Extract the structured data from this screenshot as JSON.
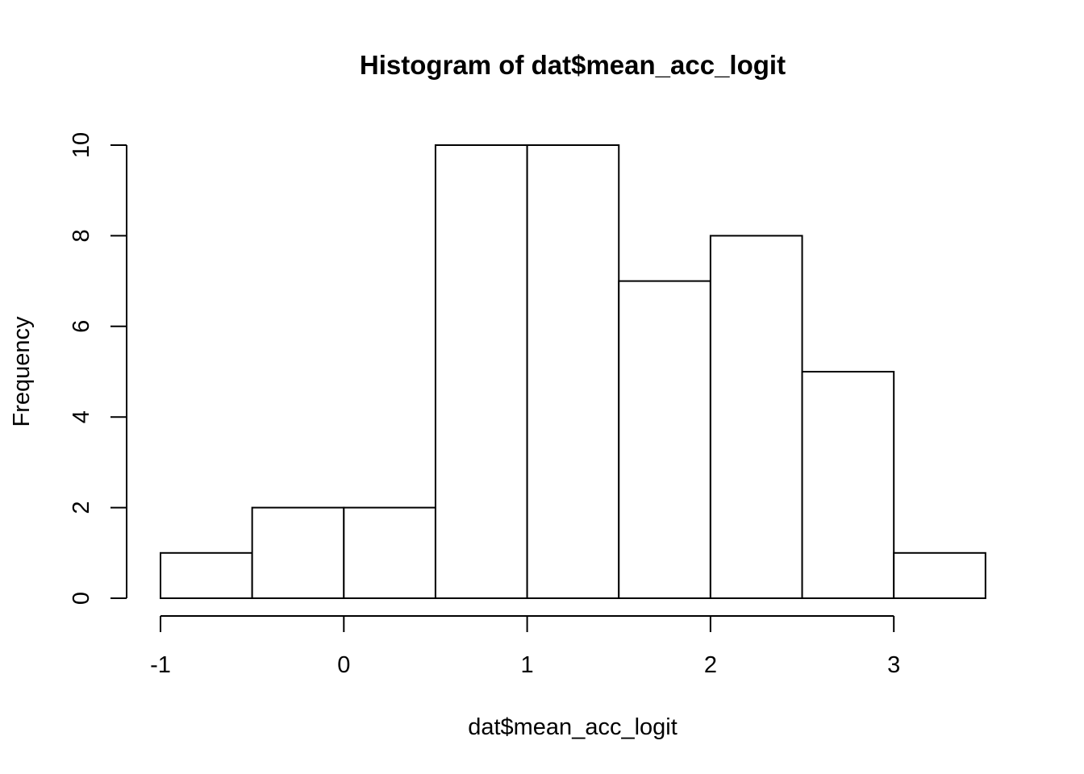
{
  "chart_data": {
    "type": "bar",
    "title": "Histogram of dat$mean_acc_logit",
    "xlabel": "dat$mean_acc_logit",
    "ylabel": "Frequency",
    "bins": [
      {
        "start": -1.0,
        "end": -0.5,
        "count": 1
      },
      {
        "start": -0.5,
        "end": 0.0,
        "count": 2
      },
      {
        "start": 0.0,
        "end": 0.5,
        "count": 2
      },
      {
        "start": 0.5,
        "end": 1.0,
        "count": 10
      },
      {
        "start": 1.0,
        "end": 1.5,
        "count": 10
      },
      {
        "start": 1.5,
        "end": 2.0,
        "count": 7
      },
      {
        "start": 2.0,
        "end": 2.5,
        "count": 8
      },
      {
        "start": 2.5,
        "end": 3.0,
        "count": 5
      },
      {
        "start": 3.0,
        "end": 3.5,
        "count": 1
      }
    ],
    "xlim": [
      -1,
      3.5
    ],
    "ylim": [
      0,
      10
    ],
    "x_ticks": [
      "-1",
      "0",
      "1",
      "2",
      "3"
    ],
    "y_ticks": [
      "0",
      "2",
      "4",
      "6",
      "8",
      "10"
    ],
    "grid": false,
    "bar_fill": "#ffffff",
    "bar_stroke": "#000000"
  }
}
